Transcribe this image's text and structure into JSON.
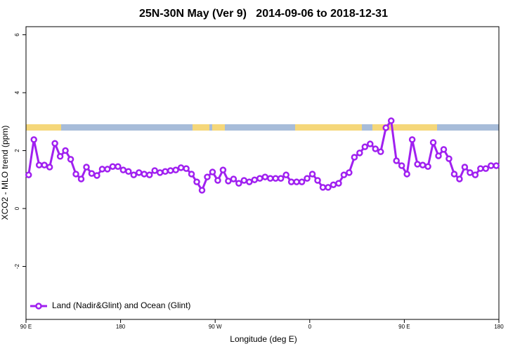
{
  "chart_data": {
    "type": "line",
    "title": "25N-30N May (Ver 9)   2014-09-06 to 2018-12-31",
    "x_label": "Longitude (deg E)",
    "y_label": "XCO2 - MLO trend (ppm)",
    "x": [
      92.5,
      97.5,
      102.5,
      107.5,
      112.5,
      117.5,
      122.5,
      127.5,
      132.5,
      137.5,
      142.5,
      147.5,
      152.5,
      157.5,
      162.5,
      167.5,
      172.5,
      177.5,
      182.5,
      187.5,
      192.5,
      197.5,
      202.5,
      207.5,
      212.5,
      217.5,
      222.5,
      227.5,
      232.5,
      237.5,
      242.5,
      247.5,
      252.5,
      257.5,
      262.5,
      267.5,
      272.5,
      277.5,
      282.5,
      287.5,
      292.5,
      297.5,
      302.5,
      307.5,
      312.5,
      317.5,
      322.5,
      327.5,
      332.5,
      337.5,
      342.5,
      347.5,
      352.5,
      357.5,
      362.5,
      367.5,
      372.5,
      377.5,
      382.5,
      387.5,
      392.5,
      397.5,
      402.5,
      407.5,
      412.5,
      417.5,
      422.5,
      427.5,
      432.5,
      437.5,
      442.5,
      447.5,
      452.5,
      457.5,
      462.5,
      467.5,
      472.5,
      477.5,
      482.5,
      487.5,
      492.5,
      497.5,
      502.5,
      507.5,
      512.5,
      517.5,
      522.5,
      527.5,
      532.5,
      537.5
    ],
    "series": [
      {
        "name": "Land (Nadir&Glint) and Ocean (Glint)",
        "color": "#a020f0",
        "values": [
          1.16,
          2.38,
          1.5,
          1.5,
          1.43,
          2.25,
          1.8,
          2.0,
          1.7,
          1.19,
          1.02,
          1.43,
          1.21,
          1.14,
          1.36,
          1.36,
          1.45,
          1.45,
          1.33,
          1.28,
          1.16,
          1.24,
          1.19,
          1.16,
          1.31,
          1.24,
          1.28,
          1.31,
          1.33,
          1.41,
          1.38,
          1.19,
          0.92,
          0.63,
          1.09,
          1.26,
          0.97,
          1.33,
          0.95,
          1.02,
          0.87,
          0.97,
          0.92,
          0.99,
          1.04,
          1.09,
          1.04,
          1.04,
          1.04,
          1.16,
          0.92,
          0.92,
          0.92,
          1.04,
          1.19,
          0.97,
          0.73,
          0.73,
          0.82,
          0.87,
          1.16,
          1.24,
          1.77,
          1.92,
          2.13,
          2.23,
          2.06,
          1.96,
          2.79,
          3.03,
          1.65,
          1.48,
          1.19,
          2.38,
          1.53,
          1.5,
          1.45,
          2.28,
          1.82,
          2.04,
          1.72,
          1.19,
          1.02,
          1.43,
          1.24,
          1.16,
          1.38,
          1.38,
          1.48,
          1.48
        ]
      }
    ],
    "xlim": [
      90,
      540
    ],
    "xticks": [
      {
        "value": 90,
        "label": "90 E"
      },
      180,
      {
        "value": 270,
        "label": "90 W"
      },
      {
        "value": 360,
        "label": "0"
      },
      {
        "value": 450,
        "label": "90 E"
      },
      {
        "value": 540,
        "label": "180"
      }
    ],
    "ylim": [
      -3.83,
      6.28
    ],
    "yticks": [
      -2,
      0,
      2,
      4,
      6
    ],
    "legend": "bottom-left"
  }
}
